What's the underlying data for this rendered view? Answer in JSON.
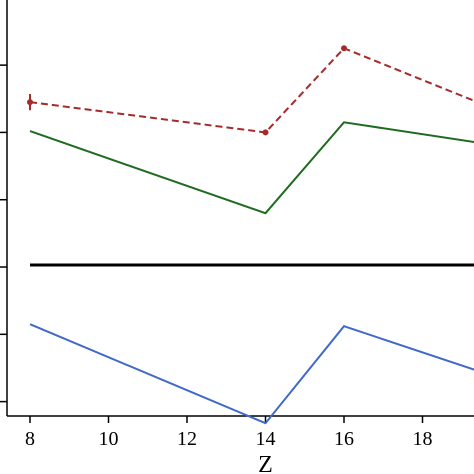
{
  "chart_data": {
    "type": "line",
    "xlabel": "Z",
    "ylabel": "",
    "title": "",
    "xlim": [
      7.4,
      19.4
    ],
    "ylim": [
      0,
      6
    ],
    "x_ticks": [
      8,
      10,
      12,
      14,
      16,
      18
    ],
    "y_ticks": [
      0.6,
      1.6,
      2.6,
      3.6,
      4.6,
      5.6
    ],
    "grid": false,
    "legend": "none",
    "series": [
      {
        "style": "dashed",
        "color": "#a52a2a",
        "markers": true,
        "x": [
          8,
          14,
          16,
          19.4
        ],
        "y": [
          5.05,
          4.6,
          5.85,
          5.05
        ],
        "error_bars": [
          0.12,
          0,
          0,
          0
        ]
      },
      {
        "style": "solid",
        "color": "#1f6b1f",
        "markers": false,
        "x": [
          8,
          14,
          16,
          19.4
        ],
        "y": [
          4.62,
          3.4,
          4.75,
          4.45
        ]
      },
      {
        "style": "solid",
        "color": "#000000",
        "markers": false,
        "x": [
          8,
          19.4
        ],
        "y": [
          2.63,
          2.63
        ]
      },
      {
        "style": "solid",
        "color": "#4169c8",
        "markers": false,
        "x": [
          8,
          14,
          16,
          19.4
        ],
        "y": [
          1.75,
          0.28,
          1.72,
          1.06
        ]
      }
    ]
  }
}
